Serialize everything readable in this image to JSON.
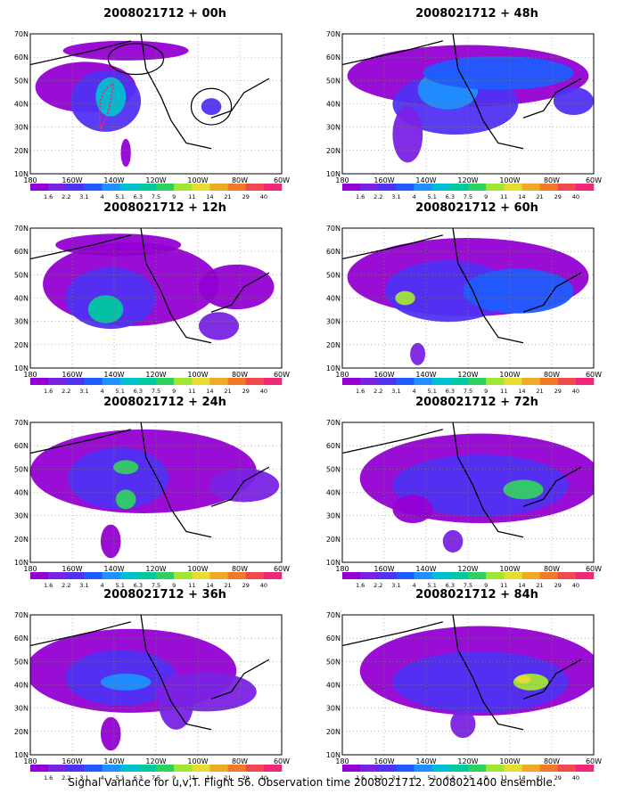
{
  "footer": "Signal Variance for u,v,T. Flight 56. Observation time 2008021712. 2008021400 ensemble.",
  "lat_labels": [
    "70N",
    "60N",
    "50N",
    "40N",
    "30N",
    "20N",
    "10N"
  ],
  "lon_labels": [
    "180",
    "160W",
    "140W",
    "120W",
    "100W",
    "80W",
    "60W"
  ],
  "colorbar": {
    "labels": [
      "1.6",
      "2.2",
      "3.1",
      "4",
      "5.1",
      "6.3",
      "7.5",
      "9",
      "11",
      "14",
      "21",
      "29",
      "40"
    ],
    "colors": [
      "#9400d3",
      "#7a22e4",
      "#5032f2",
      "#1f5cff",
      "#1e90ff",
      "#00c0d0",
      "#00c8a0",
      "#30d060",
      "#a0e632",
      "#e6dc32",
      "#f0aa28",
      "#f07a28",
      "#f04a50",
      "#f0287a"
    ]
  },
  "panels": [
    {
      "title": "2008021712 + 00h"
    },
    {
      "title": "2008021712 + 48h"
    },
    {
      "title": "2008021712 + 12h"
    },
    {
      "title": "2008021712 + 60h"
    },
    {
      "title": "2008021712 + 24h"
    },
    {
      "title": "2008021712 + 72h"
    },
    {
      "title": "2008021712 + 36h"
    },
    {
      "title": "2008021712 + 84h"
    }
  ]
}
